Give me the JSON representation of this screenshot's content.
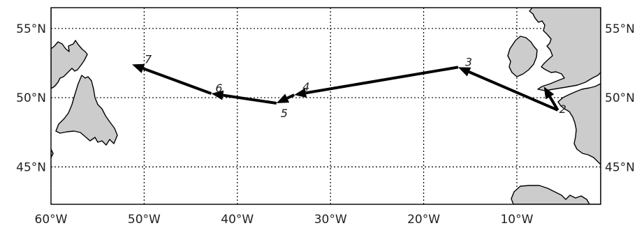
{
  "map": {
    "projection": "cylindrical",
    "lon_range": [
      -60,
      -1
    ],
    "lat_range": [
      42.3,
      56.5
    ],
    "colors": {
      "land": "#cccccc",
      "coastline": "#000000",
      "ocean": "#ffffff",
      "track": "#000000",
      "grid": "#000000"
    },
    "grid": {
      "style": "dotted",
      "meridians": [
        -60,
        -50,
        -40,
        -30,
        -20,
        -10
      ],
      "parallels": [
        45,
        50,
        55
      ]
    },
    "lon_ticks": [
      {
        "lon": -60,
        "label": "60°W"
      },
      {
        "lon": -50,
        "label": "50°W"
      },
      {
        "lon": -40,
        "label": "40°W"
      },
      {
        "lon": -30,
        "label": "30°W"
      },
      {
        "lon": -20,
        "label": "20°W"
      },
      {
        "lon": -10,
        "label": "10°W"
      }
    ],
    "lat_ticks": [
      {
        "lat": 55,
        "label": "55°N"
      },
      {
        "lat": 50,
        "label": "50°N"
      },
      {
        "lat": 45,
        "label": "45°N"
      }
    ],
    "track": {
      "waypoints": [
        {
          "label": "2",
          "lon": -5.6,
          "lat": 49.1
        },
        {
          "label": "3",
          "lon": -16.3,
          "lat": 52.2
        },
        {
          "label": "4",
          "lon": -33.9,
          "lat": 50.2
        },
        {
          "label": "5",
          "lon": -35.8,
          "lat": 49.6
        },
        {
          "label": "6",
          "lon": -42.8,
          "lat": 50.3
        },
        {
          "label": "7",
          "lon": -51.3,
          "lat": 52.4
        }
      ],
      "start_arrow": {
        "from_lon": -5.6,
        "from_lat": 49.1,
        "to_lon": -7.1,
        "to_lat": 50.8
      }
    }
  }
}
